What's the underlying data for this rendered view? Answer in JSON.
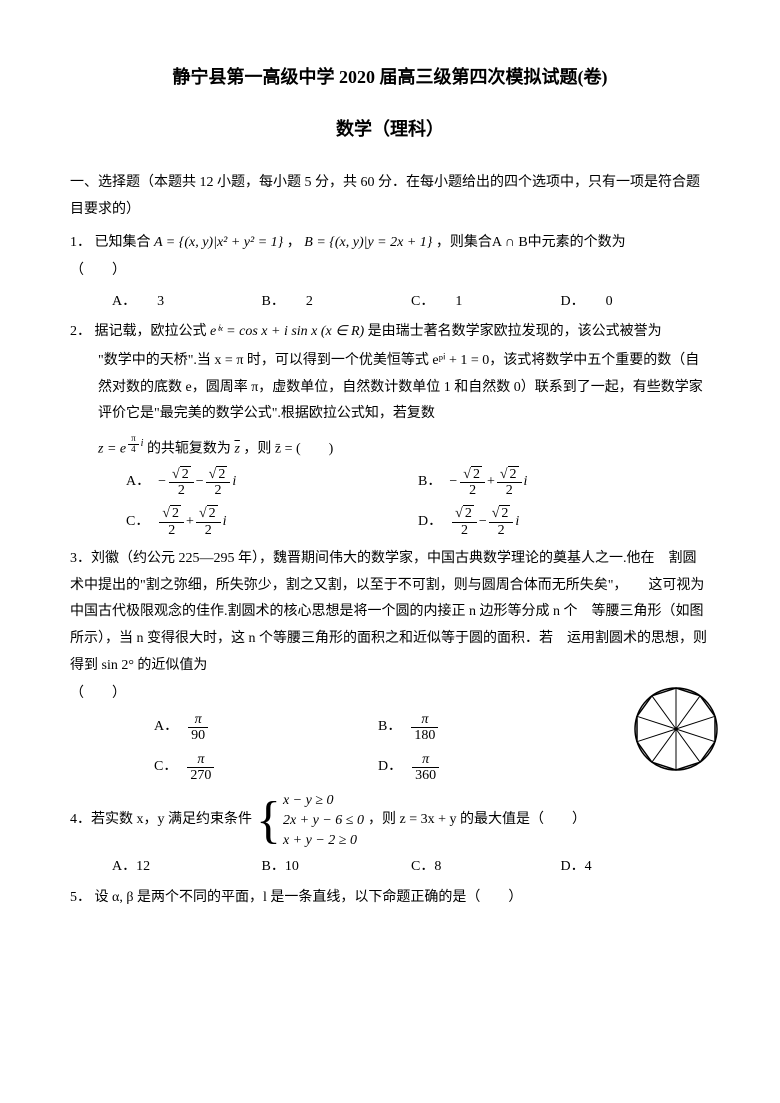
{
  "header": {
    "title": "静宁县第一高级中学 2020 届高三级第四次模拟试题(卷)",
    "subtitle": "数学（理科）"
  },
  "section1": {
    "label": "一、选择题（本题共 12 小题，每小题 5 分，共 60 分．在每小题给出的四个选项中，只有一项是符合题目要求的）"
  },
  "q1": {
    "num": "1．",
    "text_a": "已知集合",
    "set_a": "A = {(x, y)|x² + y² = 1}",
    "comma": "，",
    "set_b": "B = {(x, y)|y = 2x + 1}",
    "text_b": "，则集合A ∩ B中元素的个数为",
    "paren": "（　　）",
    "opts": {
      "A": "3",
      "B": "2",
      "C": "1",
      "D": "0"
    }
  },
  "q2": {
    "num": "2．",
    "intro": "据记载，欧拉公式",
    "euler": "eⁱˣ = cos x + i sin x (x ∈ R)",
    "intro2": " 是由瑞士著名数学家欧拉发现的，该公式被誉为",
    "line2": "\"数学中的天桥\".当 x = π 时，可以得到一个优美恒等式 eᵖⁱ + 1 = 0，该式将数学中五个重要的数（自然对数的底数 e，圆周率 π，虚数单位，自然数计数单位 1 和自然数 0）联系到了一起，有些数学家评价它是\"最完美的数学公式\".根据欧拉公式知，若复数",
    "zexpr_pre": "z = e",
    "zexpr_sup_frac_num": "π",
    "zexpr_sup_frac_den": "4",
    "zexpr_sup_tail": "i",
    "zexpr_mid": " 的共轭复数为 ",
    "zbar": "z̄",
    "zexpr_tail": "，则 z̄ = (　　)",
    "opts": {
      "A": "A．",
      "B": "B．",
      "C": "C．",
      "D": "D．"
    }
  },
  "q3": {
    "num": "3．",
    "text": "刘徽（约公元 225—295 年），魏晋期间伟大的数学家，中国古典数学理论的奠基人之一.他在　割圆术中提出的\"割之弥细，所失弥少，割之又割，以至于不可割，则与圆周合体而无所失矣\"，　　这可视为中国古代极限观念的佳作.割圆术的核心思想是将一个圆的内接正 n 边形等分成 n 个　等腰三角形（如图所示），当 n 变得很大时，这 n 个等腰三角形的面积之和近似等于圆的面积．若　运用割圆术的思想，则得到 sin 2° 的近似值为",
    "paren": "（　　）",
    "opts_A_den": "90",
    "opts_B_den": "180",
    "opts_C_den": "270",
    "opts_D_den": "360",
    "pi": "π"
  },
  "q4": {
    "num": "4．",
    "text_a": "若实数 x，y 满足约束条件",
    "sys1": "x − y ≥ 0",
    "sys2": "2x + y − 6 ≤ 0",
    "sys3": "x + y − 2 ≥ 0",
    "text_b": "，则 z = 3x + y 的最大值是（　　）",
    "opts": {
      "A": "A．12",
      "B": "B．10",
      "C": "C．8",
      "D": "D．4"
    }
  },
  "q5": {
    "num": "5．",
    "text": "设 α, β 是两个不同的平面，l 是一条直线，以下命题正确的是（　　）"
  },
  "labels": {
    "A": "A．",
    "B": "B．",
    "C": "C．",
    "D": "D．"
  },
  "decagon": {
    "size": 88,
    "stroke": "#000000",
    "sides": 10
  }
}
